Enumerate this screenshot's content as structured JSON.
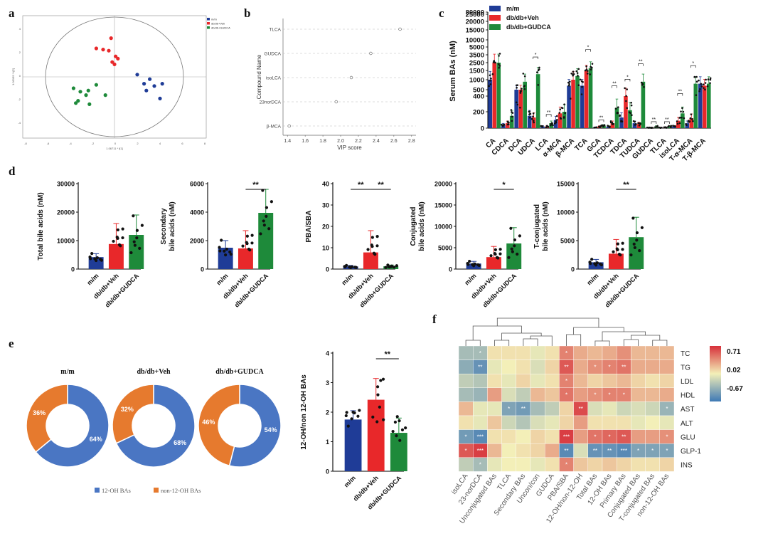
{
  "colors": {
    "mm": "#1f3c97",
    "veh": "#e8282a",
    "gudca": "#1e8a3a",
    "orange": "#e67a2e",
    "blue12": "#4a76c3",
    "heat_pos": "#d7303a",
    "heat_mid": "#f3efb8",
    "heat_neg": "#3f79b5"
  },
  "panel_labels": [
    "a",
    "b",
    "c",
    "d",
    "e",
    "f"
  ],
  "chart_data": [
    {
      "panel": "a",
      "type": "scatter",
      "xlabel": "1.06711 * t[1]",
      "ylabel": "1.03155 * t[2]",
      "x_ticks": [
        "-8",
        "-6",
        "-4",
        "-2",
        "0",
        "2",
        "4",
        "6",
        "8"
      ],
      "y_ticks": [
        "4",
        "2",
        "0",
        "-2",
        "-4"
      ],
      "legend": [
        "m/m",
        "db/db+Veh",
        "db/db+GUDCA"
      ],
      "series": [
        {
          "name": "m/m",
          "x": [
            2.0,
            3.1,
            2.6,
            3.5,
            2.8,
            4.2,
            4.0
          ],
          "y": [
            0.2,
            -0.2,
            -0.6,
            -0.8,
            -1.2,
            -0.6,
            -1.9
          ]
        },
        {
          "name": "db/db+Veh",
          "x": [
            -1.6,
            -1.0,
            -0.5,
            0.1,
            0.3,
            -0.2,
            0.0,
            -0.3
          ],
          "y": [
            2.5,
            2.4,
            2.3,
            1.8,
            1.6,
            1.3,
            1.1,
            3.4
          ]
        },
        {
          "name": "db/db+GUDCA",
          "x": [
            -3.6,
            -3.0,
            -2.5,
            -3.4,
            -2.3,
            -1.6,
            -2.2,
            -3.2,
            -0.8
          ],
          "y": [
            -1.0,
            -1.3,
            -1.6,
            -2.3,
            -1.2,
            -0.7,
            -2.4,
            -2.1,
            -1.6
          ]
        }
      ]
    },
    {
      "panel": "b",
      "type": "scatter",
      "title": "",
      "xlabel": "VIP score",
      "ylabel": "Compound Name",
      "xlim": [
        1.35,
        2.85
      ],
      "x_ticks": [
        "1.4",
        "1.6",
        "1.8",
        "2.0",
        "2.2",
        "2.4",
        "2.6",
        "2.8"
      ],
      "categories": [
        "TLCA",
        "GUDCA",
        "isoLCA",
        "23norDCA",
        "β-MCA"
      ],
      "values": [
        2.67,
        2.34,
        2.12,
        1.95,
        1.42
      ]
    },
    {
      "panel": "c",
      "type": "bar",
      "ylabel": "Serum BAs (nM)",
      "y_ticks": [
        "0",
        "200",
        "400",
        "500",
        "1000",
        "1500",
        "2500",
        "3500",
        "5000",
        "10000",
        "15000",
        "20000",
        "25000",
        "80000"
      ],
      "legend": [
        "m/m",
        "db/db+Veh",
        "db/db+GUDCA"
      ],
      "categories": [
        "CA",
        "CDCA",
        "DCA",
        "UDCA",
        "LCA",
        "α-MCA",
        "β-MCA",
        "TCA",
        "GCA",
        "TCDCA",
        "TDCA",
        "TUDCA",
        "GUDCA",
        "TLCA",
        "isoLCA",
        "T-α-MCA",
        "T-β-MCA"
      ],
      "series": [
        {
          "name": "m/m",
          "values": [
            1000,
            40,
            500,
            150,
            20,
            100,
            700,
            700,
            10,
            20,
            130,
            60,
            5,
            5,
            20,
            60,
            800
          ]
        },
        {
          "name": "db/db+Veh",
          "values": [
            2500,
            60,
            500,
            130,
            20,
            180,
            1000,
            1500,
            20,
            60,
            400,
            50,
            5,
            8,
            90,
            120,
            700
          ]
        },
        {
          "name": "db/db+GUDCA",
          "values": [
            2500,
            150,
            900,
            1300,
            60,
            200,
            1200,
            1800,
            30,
            250,
            220,
            900,
            20,
            20,
            180,
            800,
            800
          ]
        }
      ],
      "significance": [
        {
          "category": "UDCA",
          "mark": "*"
        },
        {
          "category": "LCA",
          "mark": "**"
        },
        {
          "category": "TCA",
          "mark": "*"
        },
        {
          "category": "GCA",
          "mark": "**"
        },
        {
          "category": "TCDCA",
          "mark": "**"
        },
        {
          "category": "TDCA",
          "mark": "*"
        },
        {
          "category": "TUDCA",
          "mark": "**"
        },
        {
          "category": "GUDCA",
          "mark": "**"
        },
        {
          "category": "TLCA",
          "mark": "**"
        },
        {
          "category": "isoLCA",
          "mark": "**"
        },
        {
          "category": "T-α-MCA",
          "mark": "*"
        }
      ]
    },
    {
      "panel": "d1",
      "type": "bar",
      "ylabel": "Total bile acids (nM)",
      "ylim": [
        0,
        30000
      ],
      "y_ticks": [
        "0",
        "10000",
        "20000",
        "30000"
      ],
      "categories": [
        "m/m",
        "db/db+Veh",
        "db/db+GUDCA"
      ],
      "values": [
        4200,
        8800,
        12000
      ],
      "errors": [
        1200,
        7200,
        7000
      ],
      "significance": []
    },
    {
      "panel": "d2",
      "type": "bar",
      "ylabel": "Secondary bile acids (nM)",
      "ylim": [
        0,
        6000
      ],
      "y_ticks": [
        "0",
        "2000",
        "4000",
        "6000"
      ],
      "categories": [
        "m/m",
        "db/db+Veh",
        "db/db+GUDCA"
      ],
      "values": [
        1500,
        1450,
        3950
      ],
      "errors": [
        500,
        1250,
        1650
      ],
      "significance": [
        {
          "pair": [
            1,
            2
          ],
          "mark": "**"
        }
      ]
    },
    {
      "panel": "d3",
      "type": "bar",
      "ylabel": "PBA/SBA",
      "ylim": [
        0,
        40
      ],
      "y_ticks": [
        "0",
        "10",
        "20",
        "30",
        "40"
      ],
      "categories": [
        "m/m",
        "db/db+Veh",
        "db/db+GUDCA"
      ],
      "values": [
        1.2,
        7.8,
        1.3
      ],
      "errors": [
        0.5,
        10.2,
        0.6
      ],
      "significance": [
        {
          "pair": [
            0,
            1
          ],
          "mark": "**"
        },
        {
          "pair": [
            1,
            2
          ],
          "mark": "**"
        }
      ]
    },
    {
      "panel": "d4",
      "type": "bar",
      "ylabel": "Conjugated bile acids (nM)",
      "ylim": [
        0,
        20000
      ],
      "y_ticks": [
        "0",
        "5000",
        "10000",
        "15000",
        "20000"
      ],
      "categories": [
        "m/m",
        "db/db+Veh",
        "db/db+GUDCA"
      ],
      "values": [
        1300,
        2800,
        6000
      ],
      "errors": [
        500,
        2500,
        3700
      ],
      "significance": [
        {
          "pair": [
            1,
            2
          ],
          "mark": "*"
        }
      ]
    },
    {
      "panel": "d5",
      "type": "bar",
      "ylabel": "T-conjugated bile acids (nM)",
      "ylim": [
        0,
        15000
      ],
      "y_ticks": [
        "0",
        "5000",
        "10000",
        "15000"
      ],
      "categories": [
        "m/m",
        "db/db+Veh",
        "db/db+GUDCA"
      ],
      "values": [
        1200,
        2700,
        5600
      ],
      "errors": [
        500,
        2500,
        3500
      ],
      "significance": [
        {
          "pair": [
            1,
            2
          ],
          "mark": "**"
        }
      ]
    },
    {
      "panel": "e_pies",
      "type": "pie",
      "groups": [
        {
          "title": "m/m",
          "slices": [
            64,
            36
          ],
          "labels": [
            "64%",
            "36%"
          ]
        },
        {
          "title": "db/db+Veh",
          "slices": [
            68,
            32
          ],
          "labels": [
            "68%",
            "32%"
          ]
        },
        {
          "title": "db/db+GUDCA",
          "slices": [
            54,
            46
          ],
          "labels": [
            "54%",
            "46%"
          ]
        }
      ],
      "legend": [
        "12-OH BAs",
        "non-12-OH BAs"
      ]
    },
    {
      "panel": "e_bar",
      "type": "bar",
      "ylabel": "12-OH/non 12-OH BAs",
      "ylim": [
        0,
        4
      ],
      "y_ticks": [
        "0",
        "1",
        "2",
        "3",
        "4"
      ],
      "categories": [
        "m/m",
        "db/db+Veh",
        "db/db+GUDCA"
      ],
      "values": [
        1.75,
        2.42,
        1.3
      ],
      "errors": [
        0.3,
        0.72,
        0.5
      ],
      "significance": [
        {
          "pair": [
            1,
            2
          ],
          "mark": "**"
        }
      ]
    },
    {
      "panel": "f",
      "type": "heatmap",
      "rows": [
        "TC",
        "TG",
        "LDL",
        "HDL",
        "AST",
        "ALT",
        "GLU",
        "GLP-1",
        "INS"
      ],
      "columns": [
        "isoLCA",
        "23-norDCA",
        "Unconjugated BAs",
        "TLCA",
        "Secondary BAs",
        "Uncon/con",
        "GUDCA",
        "PBA/SBA",
        "12-OH/non-12-OH",
        "Total BAs",
        "12-OH BAs",
        "Primary BAs",
        "Conjugated BAs",
        "T-conjugated BAs",
        "non-12-OH BAs"
      ],
      "values": [
        [
          -0.3,
          -0.3,
          0.05,
          0.05,
          0.05,
          -0.05,
          0.05,
          0.4,
          0.25,
          0.2,
          0.25,
          0.35,
          0.2,
          0.2,
          0.2
        ],
        [
          -0.4,
          -0.55,
          -0.05,
          0.0,
          0.05,
          -0.1,
          0.1,
          0.55,
          0.25,
          0.35,
          0.4,
          0.45,
          0.25,
          0.25,
          0.25
        ],
        [
          -0.2,
          -0.25,
          0.05,
          -0.05,
          0.1,
          -0.05,
          0.05,
          0.4,
          0.2,
          0.1,
          0.15,
          0.2,
          0.1,
          0.05,
          0.1
        ],
        [
          -0.3,
          -0.35,
          0.3,
          -0.1,
          -0.2,
          0.2,
          0.15,
          0.45,
          0.3,
          0.35,
          0.4,
          0.4,
          0.2,
          0.2,
          0.25
        ],
        [
          0.2,
          -0.05,
          -0.05,
          -0.45,
          -0.5,
          -0.3,
          -0.2,
          0.1,
          0.6,
          -0.1,
          -0.05,
          -0.15,
          -0.1,
          -0.15,
          -0.35
        ],
        [
          0.05,
          -0.05,
          0.15,
          -0.15,
          -0.25,
          -0.1,
          -0.05,
          0.1,
          0.3,
          0.05,
          0.05,
          0.05,
          -0.05,
          0.0,
          -0.05
        ],
        [
          -0.5,
          -0.6,
          0.05,
          0.05,
          0.0,
          0.1,
          0.05,
          0.65,
          0.3,
          0.45,
          0.5,
          0.55,
          0.3,
          0.3,
          0.35
        ],
        [
          0.55,
          0.65,
          0.2,
          0.0,
          0.05,
          0.1,
          0.25,
          -0.6,
          -0.1,
          -0.55,
          -0.55,
          -0.6,
          -0.45,
          -0.45,
          -0.45
        ],
        [
          -0.2,
          -0.3,
          -0.05,
          0.0,
          0.0,
          -0.05,
          0.05,
          0.4,
          0.15,
          0.1,
          0.15,
          0.1,
          0.05,
          0.05,
          0.1
        ]
      ],
      "stars": [
        [
          "",
          "*",
          "",
          "",
          "",
          "",
          "",
          "*",
          "",
          "",
          "",
          "",
          "",
          "",
          ""
        ],
        [
          "",
          "**",
          "",
          "",
          "",
          "",
          "",
          "**",
          "",
          "*",
          "*",
          "**",
          "",
          "",
          ""
        ],
        [
          "",
          "",
          "",
          "",
          "",
          "",
          "",
          "*",
          "",
          "",
          "",
          "",
          "",
          "",
          ""
        ],
        [
          "",
          "",
          "",
          "",
          "",
          "",
          "",
          "*",
          "",
          "*",
          "*",
          "*",
          "",
          "",
          ""
        ],
        [
          "",
          "",
          "",
          "*",
          "**",
          "",
          "",
          "",
          "**",
          "",
          "",
          "",
          "",
          "",
          "*"
        ],
        [
          "",
          "",
          "",
          "",
          "",
          "",
          "",
          "",
          "",
          "",
          "",
          "",
          "",
          "",
          ""
        ],
        [
          "*",
          "***",
          "",
          "",
          "",
          "",
          "",
          "***",
          "",
          "*",
          "*",
          "**",
          "",
          "",
          "*"
        ],
        [
          "*",
          "***",
          "",
          "",
          "",
          "",
          "",
          "**",
          "",
          "**",
          "**",
          "***",
          "*",
          "*",
          "*"
        ],
        [
          "",
          "*",
          "",
          "",
          "",
          "",
          "",
          "*",
          "",
          "",
          "",
          "",
          "",
          "",
          ""
        ]
      ],
      "colorbar_labels": [
        "0.71",
        "0.02",
        "-0.67"
      ]
    }
  ]
}
